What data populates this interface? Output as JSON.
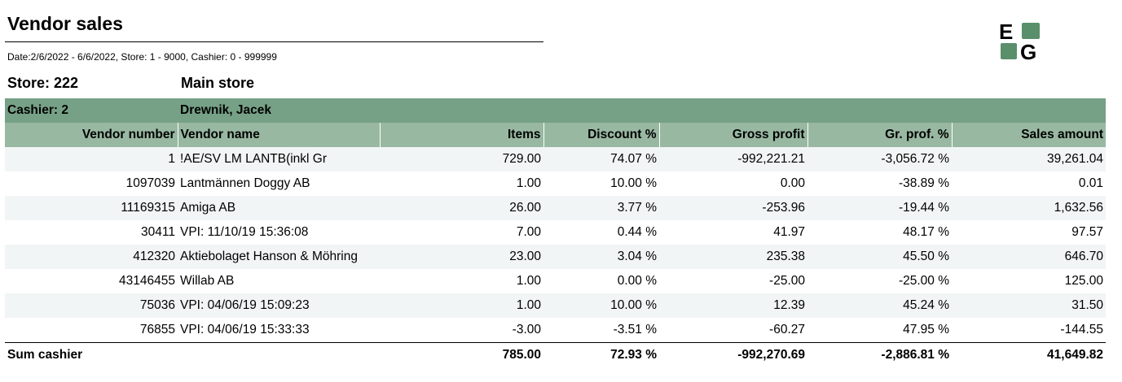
{
  "title": "Vendor sales",
  "params": "Date:2/6/2022 - 6/6/2022, Store: 1 - 9000, Cashier: 0 - 999999",
  "logo": {
    "text": "EG",
    "colors": {
      "green": "#5a8f6c",
      "black": "#000000"
    }
  },
  "store": {
    "label": "Store: 222",
    "name": "Main store"
  },
  "cashier": {
    "label": "Cashier: 2",
    "name": "Drewnik, Jacek"
  },
  "columns": [
    "Vendor number",
    "Vendor name",
    "Items",
    "Discount %",
    "Gross profit",
    "Gr. prof. %",
    "Sales amount"
  ],
  "rows": [
    [
      "1",
      "!AE/SV LM LANTB(inkl Gr",
      "729.00",
      "74.07 %",
      "-992,221.21",
      "-3,056.72 %",
      "39,261.04"
    ],
    [
      "1097039",
      "Lantmännen Doggy AB",
      "1.00",
      "10.00 %",
      "0.00",
      "-38.89 %",
      "0.01"
    ],
    [
      "11169315",
      "Amiga AB",
      "26.00",
      "3.77 %",
      "-253.96",
      "-19.44 %",
      "1,632.56"
    ],
    [
      "30411",
      "VPI: 11/10/19 15:36:08",
      "7.00",
      "0.44 %",
      "41.97",
      "48.17 %",
      "97.57"
    ],
    [
      "412320",
      "Aktiebolaget Hanson & Möhring",
      "23.00",
      "3.04 %",
      "235.38",
      "45.50 %",
      "646.70"
    ],
    [
      "43146455",
      "Willab  AB",
      "1.00",
      "0.00 %",
      "-25.00",
      "-25.00 %",
      "125.00"
    ],
    [
      "75036",
      "VPI: 04/06/19 15:09:23",
      "1.00",
      "10.00 %",
      "12.39",
      "45.24 %",
      "31.50"
    ],
    [
      "76855",
      "VPI: 04/06/19 15:33:33",
      "-3.00",
      "-3.51 %",
      "-60.27",
      "47.95 %",
      "-144.55"
    ]
  ],
  "sum": {
    "label": "Sum cashier",
    "items": "785.00",
    "discount": "72.93 %",
    "gross_profit": "-992,270.69",
    "gr_prof_pct": "-2,886.81 %",
    "sales_amount": "41,649.82"
  }
}
